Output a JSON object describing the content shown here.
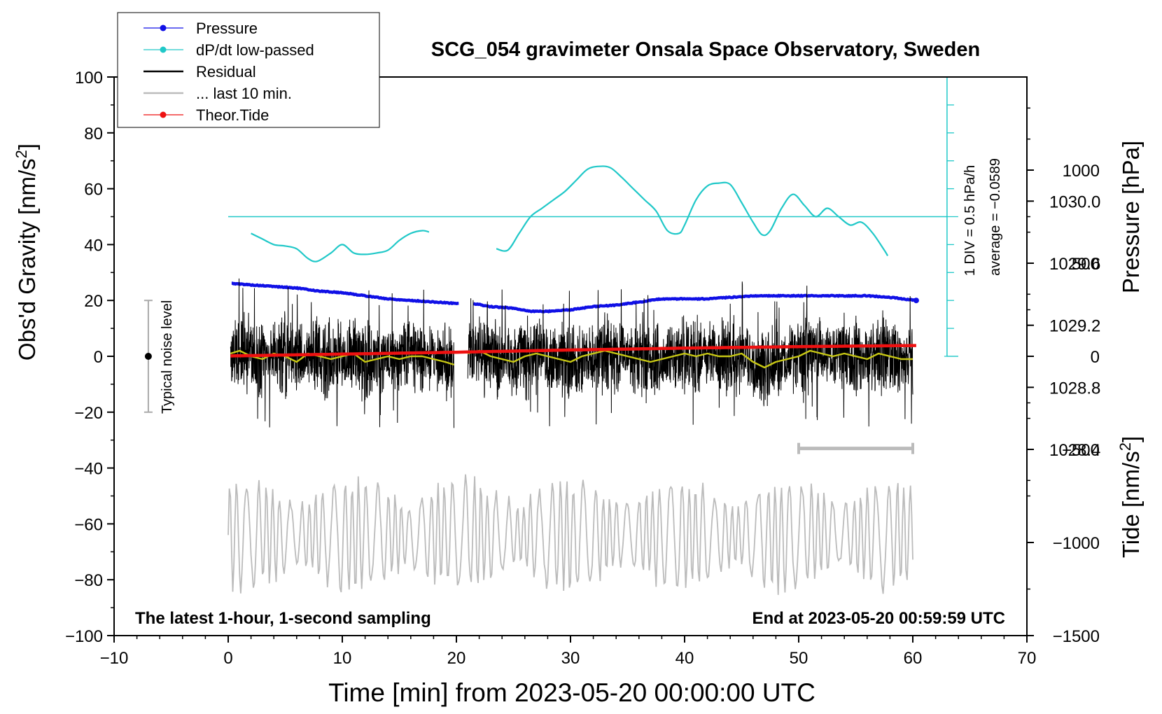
{
  "chart_data": {
    "type": "line",
    "title": "SCG_054 gravimeter Onsala Space Observatory, Sweden",
    "xlabel": "Time [min] from 2023-05-20 00:00:00 UTC",
    "ylabel": "Obs'd Gravity [nm/s",
    "ylabel_sup": "2",
    "ylabel_end": "]",
    "y2label": "Pressure [hPa]",
    "y3label": "Tide [nm/s",
    "y3label_sup": "2",
    "y3label_end": "]",
    "xlim": [
      -10,
      70
    ],
    "ylim": [
      -100,
      100
    ],
    "x_ticks": [
      "-10",
      "0",
      "10",
      "20",
      "30",
      "40",
      "50",
      "60",
      "70"
    ],
    "y_ticks": [
      "-100",
      "-80",
      "-60",
      "-40",
      "-20",
      "0",
      "20",
      "40",
      "60",
      "80",
      "100"
    ],
    "pressure_ticks": [
      "1028.4",
      "1028.8",
      "1029.2",
      "1029.6",
      "1030.0"
    ],
    "tide_ticks": [
      "-1500",
      "-1000",
      "-500",
      "0",
      "500",
      "1000"
    ],
    "pressure_axis": {
      "min": 1027.2,
      "max": 1030.8
    },
    "tide_axis": {
      "min": -1500,
      "max": 1500
    },
    "legend": [
      {
        "label": "Pressure",
        "color": "#1010e6",
        "marker": true
      },
      {
        "label": "dP/dt low-passed",
        "color": "#20c8c8",
        "marker": true
      },
      {
        "label": "Residual",
        "color": "#000000",
        "marker": false
      },
      {
        "label": "... last 10 min.",
        "color": "#bbbbbb",
        "marker": false
      },
      {
        "label": "Theor.Tide",
        "color": "#ee1111",
        "marker": true
      }
    ],
    "annotations": {
      "bottom_left": "The latest 1-hour, 1-second sampling",
      "bottom_right": "End at 2023-05-20 00:59:59 UTC",
      "noise": "Typical noise level",
      "noise_range": [
        -20,
        20
      ],
      "dpdt_scale": "1 DIV = 0.5 hPa/h",
      "dpdt_avg": "average = −0.0589",
      "dpdt_baseline_grav": 50,
      "last10_range_min": [
        50,
        60
      ]
    },
    "series": [
      {
        "name": "Pressure",
        "unit": "hPa",
        "color": "#1010e6",
        "x": [
          0.3,
          2,
          4,
          6,
          8,
          10,
          12,
          14,
          16,
          18,
          20.2,
          21.5,
          23,
          25,
          26.5,
          28,
          30,
          32,
          34,
          36,
          38,
          40,
          42,
          44,
          46,
          48,
          50,
          52,
          54,
          56,
          58,
          60.3
        ],
        "values": [
          1029.47,
          1029.46,
          1029.45,
          1029.44,
          1029.42,
          1029.41,
          1029.39,
          1029.37,
          1029.36,
          1029.35,
          1029.34,
          1029.34,
          1029.32,
          1029.31,
          1029.29,
          1029.29,
          1029.3,
          1029.32,
          1029.33,
          1029.35,
          1029.37,
          1029.37,
          1029.37,
          1029.38,
          1029.39,
          1029.39,
          1029.39,
          1029.39,
          1029.39,
          1029.39,
          1029.38,
          1029.36
        ]
      },
      {
        "name": "dP/dt low-passed",
        "unit": "nm/s2 (plot)",
        "color": "#20c8c8",
        "x": [
          2,
          3,
          4,
          5,
          6,
          7,
          7.8,
          9,
          10,
          11,
          12,
          13,
          14,
          15,
          16,
          17,
          17.6,
          23.5,
          24.5,
          25.5,
          26.5,
          27.5,
          28.5,
          29.5,
          30.5,
          31.5,
          32.5,
          33.5,
          34.5,
          35.5,
          36.5,
          37.5,
          38.5,
          39.5,
          40,
          41,
          42,
          43,
          44,
          45,
          46,
          46.8,
          47.5,
          48.5,
          49.5,
          50.5,
          51.5,
          52.5,
          53.5,
          54.5,
          55.5,
          56.5,
          57.5,
          57.8
        ],
        "values": [
          44,
          42,
          40,
          39.5,
          38.5,
          35,
          34,
          37,
          40,
          37,
          36.5,
          37,
          38,
          41.5,
          44,
          45,
          44.5,
          38.5,
          38,
          44,
          50,
          53,
          56,
          59,
          63,
          67,
          68,
          67.5,
          64,
          60,
          56,
          52,
          45,
          44,
          47,
          56,
          61,
          62,
          61.5,
          55,
          48,
          43.5,
          45,
          53,
          58,
          54,
          50,
          53,
          50,
          47,
          48,
          44,
          38,
          36
        ]
      },
      {
        "name": "Residual",
        "unit": "nm/s2",
        "color": "#000000",
        "segments": [
          [
            0.2,
            19.8
          ],
          [
            21.0,
            60.0
          ]
        ],
        "envelope_approx": [
          -26,
          28
        ]
      },
      {
        "name": "Residual smoothed",
        "unit": "nm/s2",
        "color": "#c8c814",
        "x": [
          0.2,
          1,
          2,
          3,
          4,
          5,
          6,
          7,
          8,
          9,
          10,
          11,
          12,
          13,
          14,
          15,
          16,
          17,
          18,
          19,
          19.8,
          21,
          22,
          23,
          24,
          25,
          26,
          27,
          28,
          29,
          30,
          31,
          32,
          33,
          34,
          35,
          36,
          37,
          38,
          39,
          40,
          41,
          42,
          43,
          44,
          45,
          46,
          47,
          48,
          49,
          50,
          51,
          52,
          53,
          54,
          55,
          56,
          57,
          58,
          59,
          60
        ],
        "values": [
          1,
          2,
          0,
          -1,
          1,
          0,
          -2,
          1,
          0,
          -1,
          0,
          1,
          -2,
          -1,
          0,
          -1,
          0,
          0,
          -1,
          -2,
          -3,
          1,
          2,
          0,
          -1,
          -2,
          0,
          1,
          0,
          -1,
          -2,
          0,
          1,
          2,
          1,
          0,
          -1,
          -2,
          -1,
          0,
          1,
          0,
          1,
          0,
          0,
          1,
          -2,
          -4,
          -2,
          -1,
          0,
          2,
          1,
          0,
          1,
          0,
          -1,
          1,
          0,
          -1,
          -1
        ]
      },
      {
        "name": "Theor.Tide",
        "unit": "nm/s2",
        "color": "#ee1111",
        "x": [
          0.2,
          10,
          20,
          30,
          40,
          50,
          60.3
        ],
        "values": [
          2,
          12,
          22,
          34,
          44,
          52,
          58
        ]
      },
      {
        "name": "... last 10 min.",
        "unit": "nm/s2 (plot)",
        "color": "#bbbbbb",
        "x_range": [
          0,
          60
        ],
        "mean": -64,
        "amplitude_approx": 22
      }
    ]
  }
}
